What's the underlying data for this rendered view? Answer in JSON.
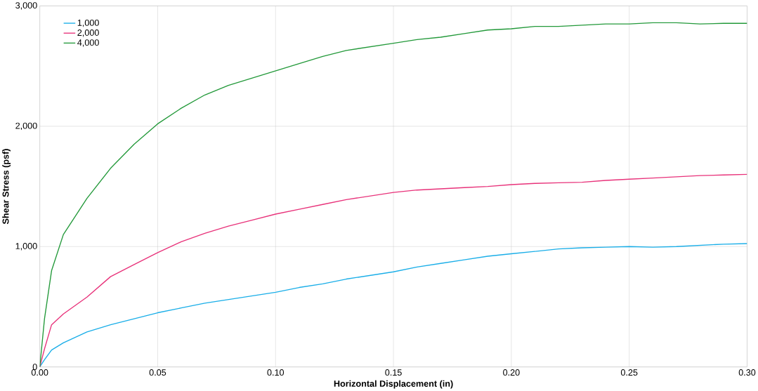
{
  "chart_data": {
    "type": "line",
    "xlabel": "Horizontal Displacement (in)",
    "ylabel": "Shear Stress (psf)",
    "xlim": [
      0,
      0.3
    ],
    "ylim": [
      0,
      3000
    ],
    "xticks": [
      {
        "value": 0,
        "label": "0.00"
      },
      {
        "value": 0.05,
        "label": "0.05"
      },
      {
        "value": 0.1,
        "label": "0.10"
      },
      {
        "value": 0.15,
        "label": "0.15"
      },
      {
        "value": 0.2,
        "label": "0.20"
      },
      {
        "value": 0.25,
        "label": "0.25"
      },
      {
        "value": 0.3,
        "label": "0.30"
      }
    ],
    "yticks": [
      0,
      {
        "value": 1000,
        "label": "1,000"
      },
      {
        "value": 2000,
        "label": "2,000"
      },
      {
        "value": 3000,
        "label": "3,000"
      }
    ],
    "grid": true,
    "legend": "top left",
    "marker": "none",
    "line_style": "solid",
    "x": [
      0,
      0.002,
      0.005,
      0.01,
      0.02,
      0.03,
      0.04,
      0.05,
      0.06,
      0.07,
      0.08,
      0.09,
      0.1,
      0.11,
      0.12,
      0.13,
      0.14,
      0.15,
      0.16,
      0.17,
      0.18,
      0.19,
      0.2,
      0.21,
      0.22,
      0.23,
      0.24,
      0.25,
      0.26,
      0.27,
      0.28,
      0.29,
      0.3
    ],
    "series": [
      {
        "name": "1,000",
        "color": "#1aaee8",
        "values": [
          0,
          60,
          140,
          200,
          290,
          350,
          400,
          450,
          490,
          530,
          560,
          590,
          620,
          660,
          690,
          730,
          760,
          790,
          830,
          860,
          890,
          920,
          940,
          960,
          980,
          990,
          995,
          1000,
          995,
          1000,
          1010,
          1020,
          1025
        ]
      },
      {
        "name": "2,000",
        "color": "#e8327a",
        "values": [
          0,
          150,
          350,
          440,
          580,
          750,
          850,
          950,
          1040,
          1110,
          1170,
          1220,
          1270,
          1310,
          1350,
          1390,
          1420,
          1450,
          1470,
          1480,
          1490,
          1500,
          1515,
          1525,
          1530,
          1535,
          1550,
          1560,
          1570,
          1580,
          1590,
          1595,
          1600
        ]
      },
      {
        "name": "4,000",
        "color": "#23993a",
        "values": [
          0,
          400,
          800,
          1100,
          1400,
          1650,
          1850,
          2020,
          2150,
          2260,
          2340,
          2400,
          2460,
          2520,
          2580,
          2630,
          2660,
          2690,
          2720,
          2740,
          2770,
          2800,
          2810,
          2830,
          2830,
          2840,
          2850,
          2850,
          2860,
          2860,
          2850,
          2855,
          2855
        ]
      }
    ]
  }
}
